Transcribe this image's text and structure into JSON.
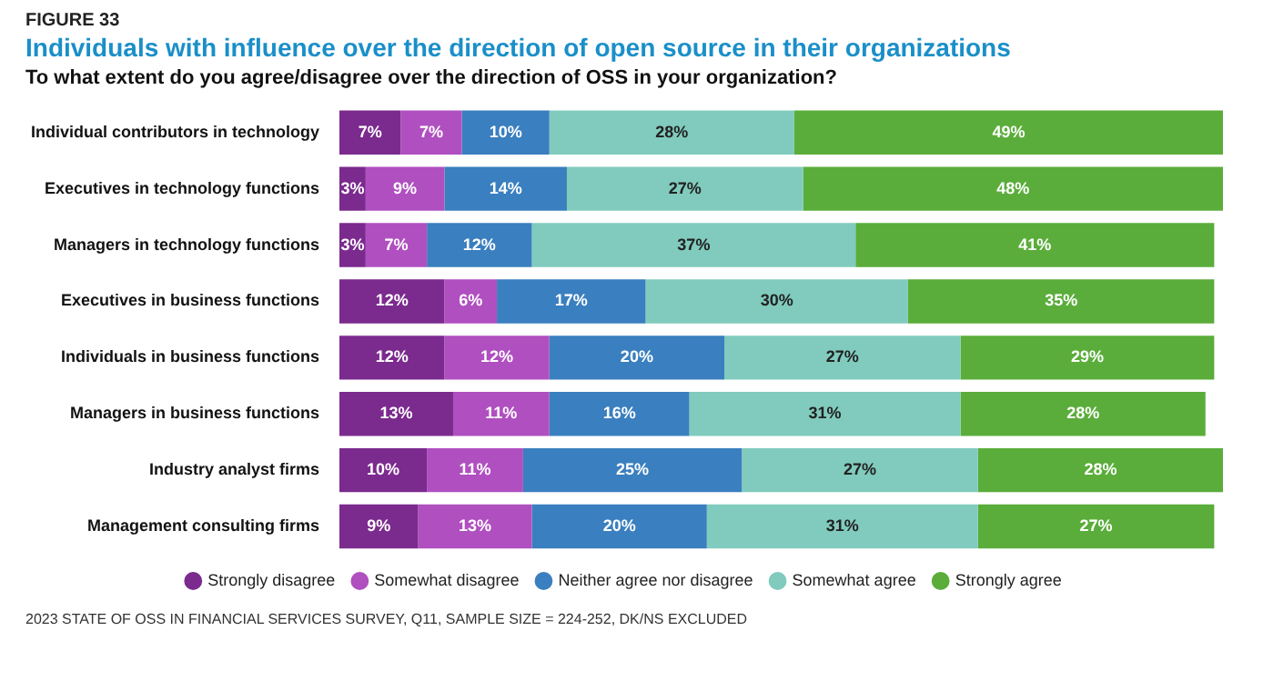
{
  "chart_data": {
    "type": "bar",
    "orientation": "horizontal",
    "stacked": true,
    "title": "Individuals with influence over the direction of open source in their organizations",
    "subtitle": "To what extent do you agree/disagree over the direction of OSS in your organization?",
    "annotations": [
      "FIGURE 33",
      "2023 STATE OF OSS IN FINANCIAL SERVICES SURVEY, Q11, SAMPLE SIZE = 224-252, DK/NS EXCLUDED"
    ],
    "categories": [
      "Individual contributors in technology",
      "Executives in technology functions",
      "Managers in technology functions",
      "Executives in business functions",
      "Individuals in business functions",
      "Managers in business functions",
      "Industry analyst firms",
      "Management consulting firms"
    ],
    "series": [
      {
        "name": "Strongly disagree",
        "color": "#7b2a8e",
        "values": [
          7,
          3,
          3,
          12,
          12,
          13,
          10,
          9
        ],
        "value_labels": [
          "7%",
          "3%",
          "3%",
          "12%",
          "12%",
          "13%",
          "10%",
          "9%"
        ]
      },
      {
        "name": "Somewhat disagree",
        "color": "#b04fc0",
        "values": [
          7,
          9,
          7,
          6,
          12,
          11,
          11,
          13
        ],
        "value_labels": [
          "7%",
          "9%",
          "7%",
          "6%",
          "12%",
          "11%",
          "11%",
          "13%"
        ]
      },
      {
        "name": "Neither agree nor disagree",
        "color": "#3a7fbf",
        "values": [
          10,
          14,
          12,
          17,
          20,
          16,
          25,
          20
        ],
        "value_labels": [
          "10%",
          "14%",
          "12%",
          "17%",
          "20%",
          "16%",
          "25%",
          "20%"
        ]
      },
      {
        "name": "Somewhat agree",
        "color": "#80cbbd",
        "values": [
          28,
          27,
          37,
          30,
          27,
          31,
          27,
          31
        ],
        "value_labels": [
          "28%",
          "27%",
          "37%",
          "30%",
          "27%",
          "31%",
          "27%",
          "31%"
        ]
      },
      {
        "name": "Strongly agree",
        "color": "#5aad3a",
        "values": [
          49,
          48,
          41,
          35,
          29,
          28,
          28,
          27
        ],
        "value_labels": [
          "49%",
          "48%",
          "41%",
          "35%",
          "29%",
          "28%",
          "28%",
          "27%"
        ]
      }
    ],
    "legend": "bottom",
    "tick_labels": "y"
  }
}
